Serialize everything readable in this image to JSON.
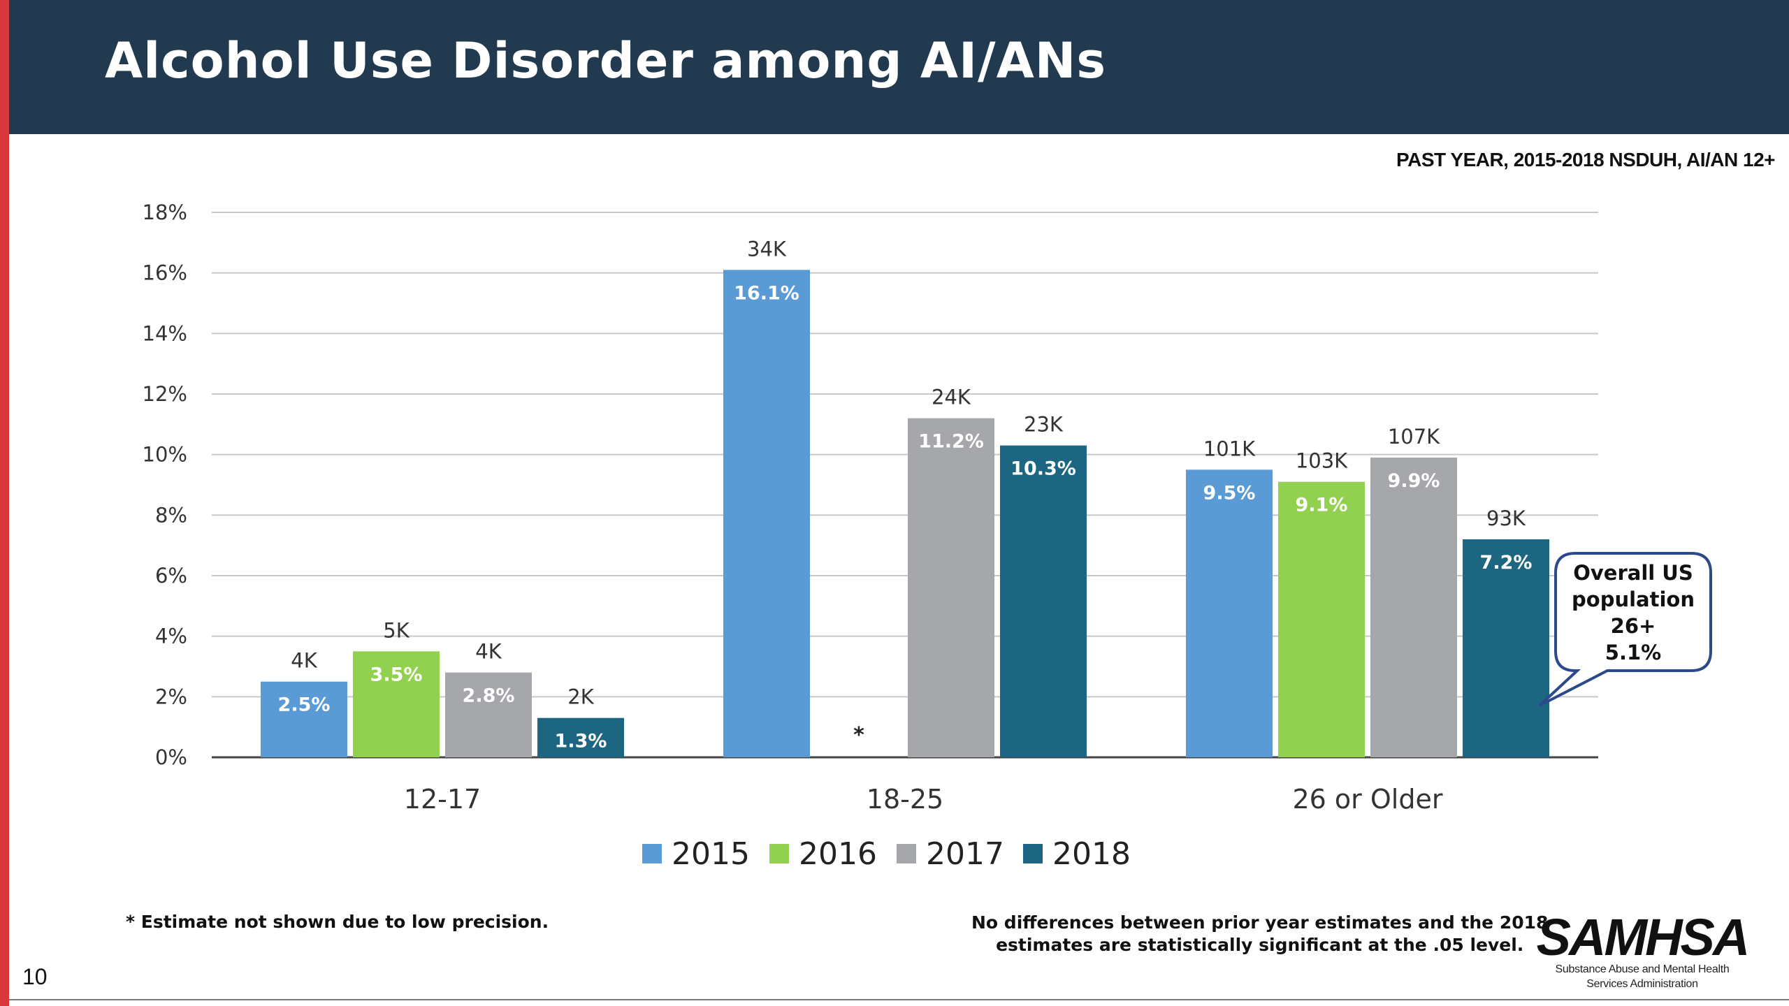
{
  "slide": {
    "title": "Alcohol Use Disorder among AI/ANs",
    "subtitle": "PAST YEAR, 2015-2018 NSDUH, AI/AN 12+",
    "footnote": "* Estimate not shown due to low precision.",
    "stat_note_line1": "No differences between prior year estimates and the 2018",
    "stat_note_line2": "estimates are statistically significant at the .05 level.",
    "page_number": "10",
    "logo_text": "SAMHSA",
    "logo_sub_line1": "Substance Abuse and Mental Health",
    "logo_sub_line2": "Services Administration",
    "colors": {
      "header": "#213a4f",
      "accent_bar": "#d9383a"
    }
  },
  "chart_data": {
    "type": "bar",
    "categories": [
      "12-17",
      "18-25",
      "26 or Older"
    ],
    "ylim": [
      0,
      18
    ],
    "yticks": [
      0,
      2,
      4,
      6,
      8,
      10,
      12,
      14,
      16,
      18
    ],
    "ytick_labels": [
      "0%",
      "2%",
      "4%",
      "6%",
      "8%",
      "10%",
      "12%",
      "14%",
      "16%",
      "18%"
    ],
    "grid": true,
    "legend_position": "bottom",
    "series": [
      {
        "name": "2015",
        "color": "#5b9bd5",
        "values": [
          2.5,
          16.1,
          9.5
        ],
        "value_labels": [
          "2.5%",
          "16.1%",
          "9.5%"
        ],
        "count_labels": [
          "4K",
          "34K",
          "101K"
        ]
      },
      {
        "name": "2016",
        "color": "#92d050",
        "values": [
          3.5,
          null,
          9.1
        ],
        "value_labels": [
          "3.5%",
          "",
          "9.1%"
        ],
        "count_labels": [
          "5K",
          "*",
          "103K"
        ]
      },
      {
        "name": "2017",
        "color": "#a5a7aa",
        "values": [
          2.8,
          11.2,
          9.9
        ],
        "value_labels": [
          "2.8%",
          "11.2%",
          "9.9%"
        ],
        "count_labels": [
          "4K",
          "24K",
          "107K"
        ]
      },
      {
        "name": "2018",
        "color": "#1d6682",
        "values": [
          1.3,
          10.3,
          7.2
        ],
        "value_labels": [
          "1.3%",
          "10.3%",
          "7.2%"
        ],
        "count_labels": [
          "2K",
          "23K",
          "93K"
        ]
      }
    ],
    "callout": {
      "lines": [
        "Overall US",
        "population",
        "26+",
        "5.1%"
      ],
      "value": 5.1
    }
  }
}
